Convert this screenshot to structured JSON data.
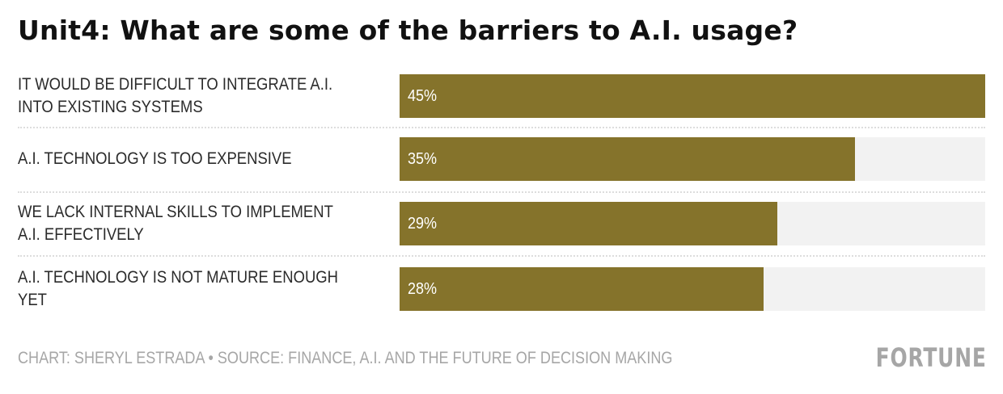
{
  "chart_data": {
    "type": "bar",
    "orientation": "horizontal",
    "title": "Unit4: What are some of the barriers to A.I. usage?",
    "categories": [
      "IT WOULD BE DIFFICULT TO INTEGRATE A.I. INTO EXISTING SYSTEMS",
      "A.I. TECHNOLOGY IS TOO EXPENSIVE",
      "WE LACK INTERNAL SKILLS TO IMPLEMENT A.I. EFFECTIVELY",
      "A.I. TECHNOLOGY IS NOT MATURE ENOUGH YET"
    ],
    "values": [
      45,
      35,
      29,
      28
    ],
    "value_labels": [
      "45%",
      "35%",
      "29%",
      "28%"
    ],
    "unit": "%",
    "xlim": [
      0,
      45
    ],
    "xlabel": "",
    "ylabel": "",
    "grid": false,
    "legend": "none",
    "colors": {
      "bar": "#85732b",
      "track": "#f2f2f2"
    }
  },
  "footer": {
    "credit": "CHART: SHERYL ESTRADA • SOURCE: FINANCE, A.I. AND THE FUTURE OF DECISION MAKING",
    "logo": "FORTUNE"
  }
}
